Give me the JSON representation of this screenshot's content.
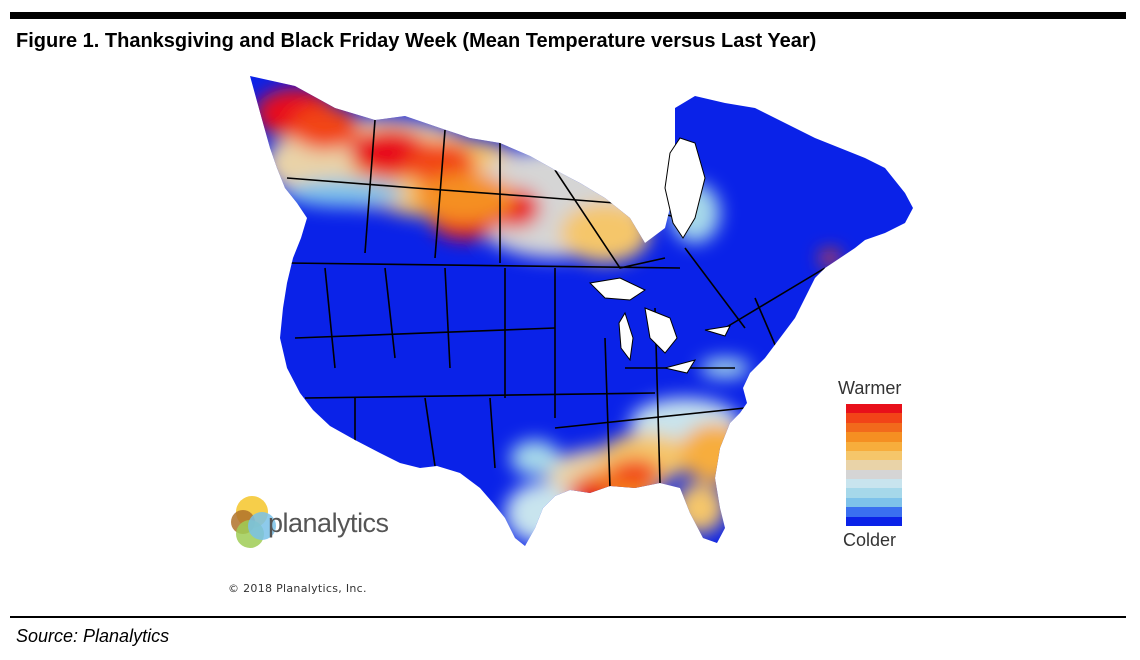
{
  "figure": {
    "title": "Figure 1. Thanksgiving and Black Friday Week (Mean Temperature versus Last Year)",
    "source": "Source: Planalytics"
  },
  "map": {
    "copyright": "© 2018 Planalytics, Inc.",
    "logo_text": "planalytics",
    "legend": {
      "top_label": "Warmer",
      "bottom_label": "Colder",
      "colors": [
        "#e8101a",
        "#f24418",
        "#f26a1c",
        "#f58f22",
        "#f7ad3c",
        "#f5c66a",
        "#e9d3a8",
        "#d5d5d5",
        "#c8e4ee",
        "#a6d8ea",
        "#7ec2ea",
        "#3a6ff0",
        "#0a22e8"
      ]
    },
    "colors": {
      "colder": "#0a22e8",
      "cool": "#7ec2ea",
      "neutral": "#d5d5d5",
      "warm": "#f5c66a",
      "warmest": "#e8101a"
    }
  }
}
